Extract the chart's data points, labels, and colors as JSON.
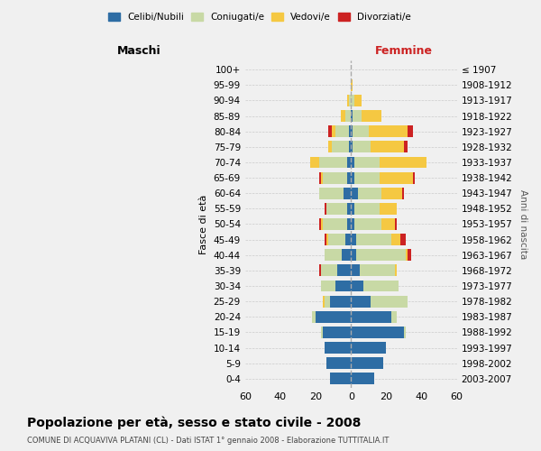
{
  "age_groups": [
    "100+",
    "95-99",
    "90-94",
    "85-89",
    "80-84",
    "75-79",
    "70-74",
    "65-69",
    "60-64",
    "55-59",
    "50-54",
    "45-49",
    "40-44",
    "35-39",
    "30-34",
    "25-29",
    "20-24",
    "15-19",
    "10-14",
    "5-9",
    "0-4"
  ],
  "birth_years": [
    "≤ 1907",
    "1908-1912",
    "1913-1917",
    "1918-1922",
    "1923-1927",
    "1928-1932",
    "1933-1937",
    "1938-1942",
    "1943-1947",
    "1948-1952",
    "1953-1957",
    "1958-1962",
    "1963-1967",
    "1968-1972",
    "1973-1977",
    "1978-1982",
    "1983-1987",
    "1988-1992",
    "1993-1997",
    "1998-2002",
    "2003-2007"
  ],
  "male": {
    "celibi": [
      0,
      0,
      0,
      0,
      1,
      1,
      2,
      2,
      4,
      2,
      2,
      3,
      5,
      8,
      9,
      12,
      20,
      16,
      15,
      14,
      12
    ],
    "coniugati": [
      0,
      0,
      1,
      3,
      8,
      10,
      16,
      14,
      14,
      12,
      14,
      10,
      10,
      9,
      8,
      3,
      2,
      1,
      0,
      0,
      0
    ],
    "vedovi": [
      0,
      0,
      1,
      3,
      2,
      2,
      5,
      1,
      0,
      0,
      1,
      1,
      0,
      0,
      0,
      1,
      0,
      0,
      0,
      0,
      0
    ],
    "divorziati": [
      0,
      0,
      0,
      0,
      2,
      0,
      0,
      1,
      0,
      1,
      1,
      1,
      0,
      1,
      0,
      0,
      0,
      0,
      0,
      0,
      0
    ]
  },
  "female": {
    "nubili": [
      0,
      0,
      0,
      1,
      1,
      1,
      2,
      2,
      4,
      2,
      2,
      3,
      3,
      5,
      7,
      11,
      23,
      30,
      20,
      18,
      13
    ],
    "coniugate": [
      0,
      0,
      2,
      5,
      9,
      10,
      14,
      14,
      13,
      14,
      15,
      20,
      28,
      20,
      20,
      21,
      3,
      1,
      0,
      0,
      0
    ],
    "vedove": [
      0,
      1,
      4,
      11,
      22,
      19,
      27,
      19,
      12,
      10,
      8,
      5,
      1,
      1,
      0,
      0,
      0,
      0,
      0,
      0,
      0
    ],
    "divorziate": [
      0,
      0,
      0,
      0,
      3,
      2,
      0,
      1,
      1,
      0,
      1,
      3,
      2,
      0,
      0,
      0,
      0,
      0,
      0,
      0,
      0
    ]
  },
  "colors": {
    "celibi_nubili": "#2e6da4",
    "coniugati_e": "#c8d9a5",
    "vedovi_e": "#f5c842",
    "divorziati_e": "#cc2222"
  },
  "xlim": 60,
  "title": "Popolazione per età, sesso e stato civile - 2008",
  "subtitle": "COMUNE DI ACQUAVIVA PLATANI (CL) - Dati ISTAT 1° gennaio 2008 - Elaborazione TUTTITALIA.IT",
  "ylabel_left": "Fasce di età",
  "ylabel_right": "Anni di nascita",
  "xlabel_male": "Maschi",
  "xlabel_female": "Femmine",
  "legend_labels": [
    "Celibi/Nubili",
    "Coniugati/e",
    "Vedovi/e",
    "Divorziati/e"
  ],
  "bg_color": "#f0f0f0"
}
